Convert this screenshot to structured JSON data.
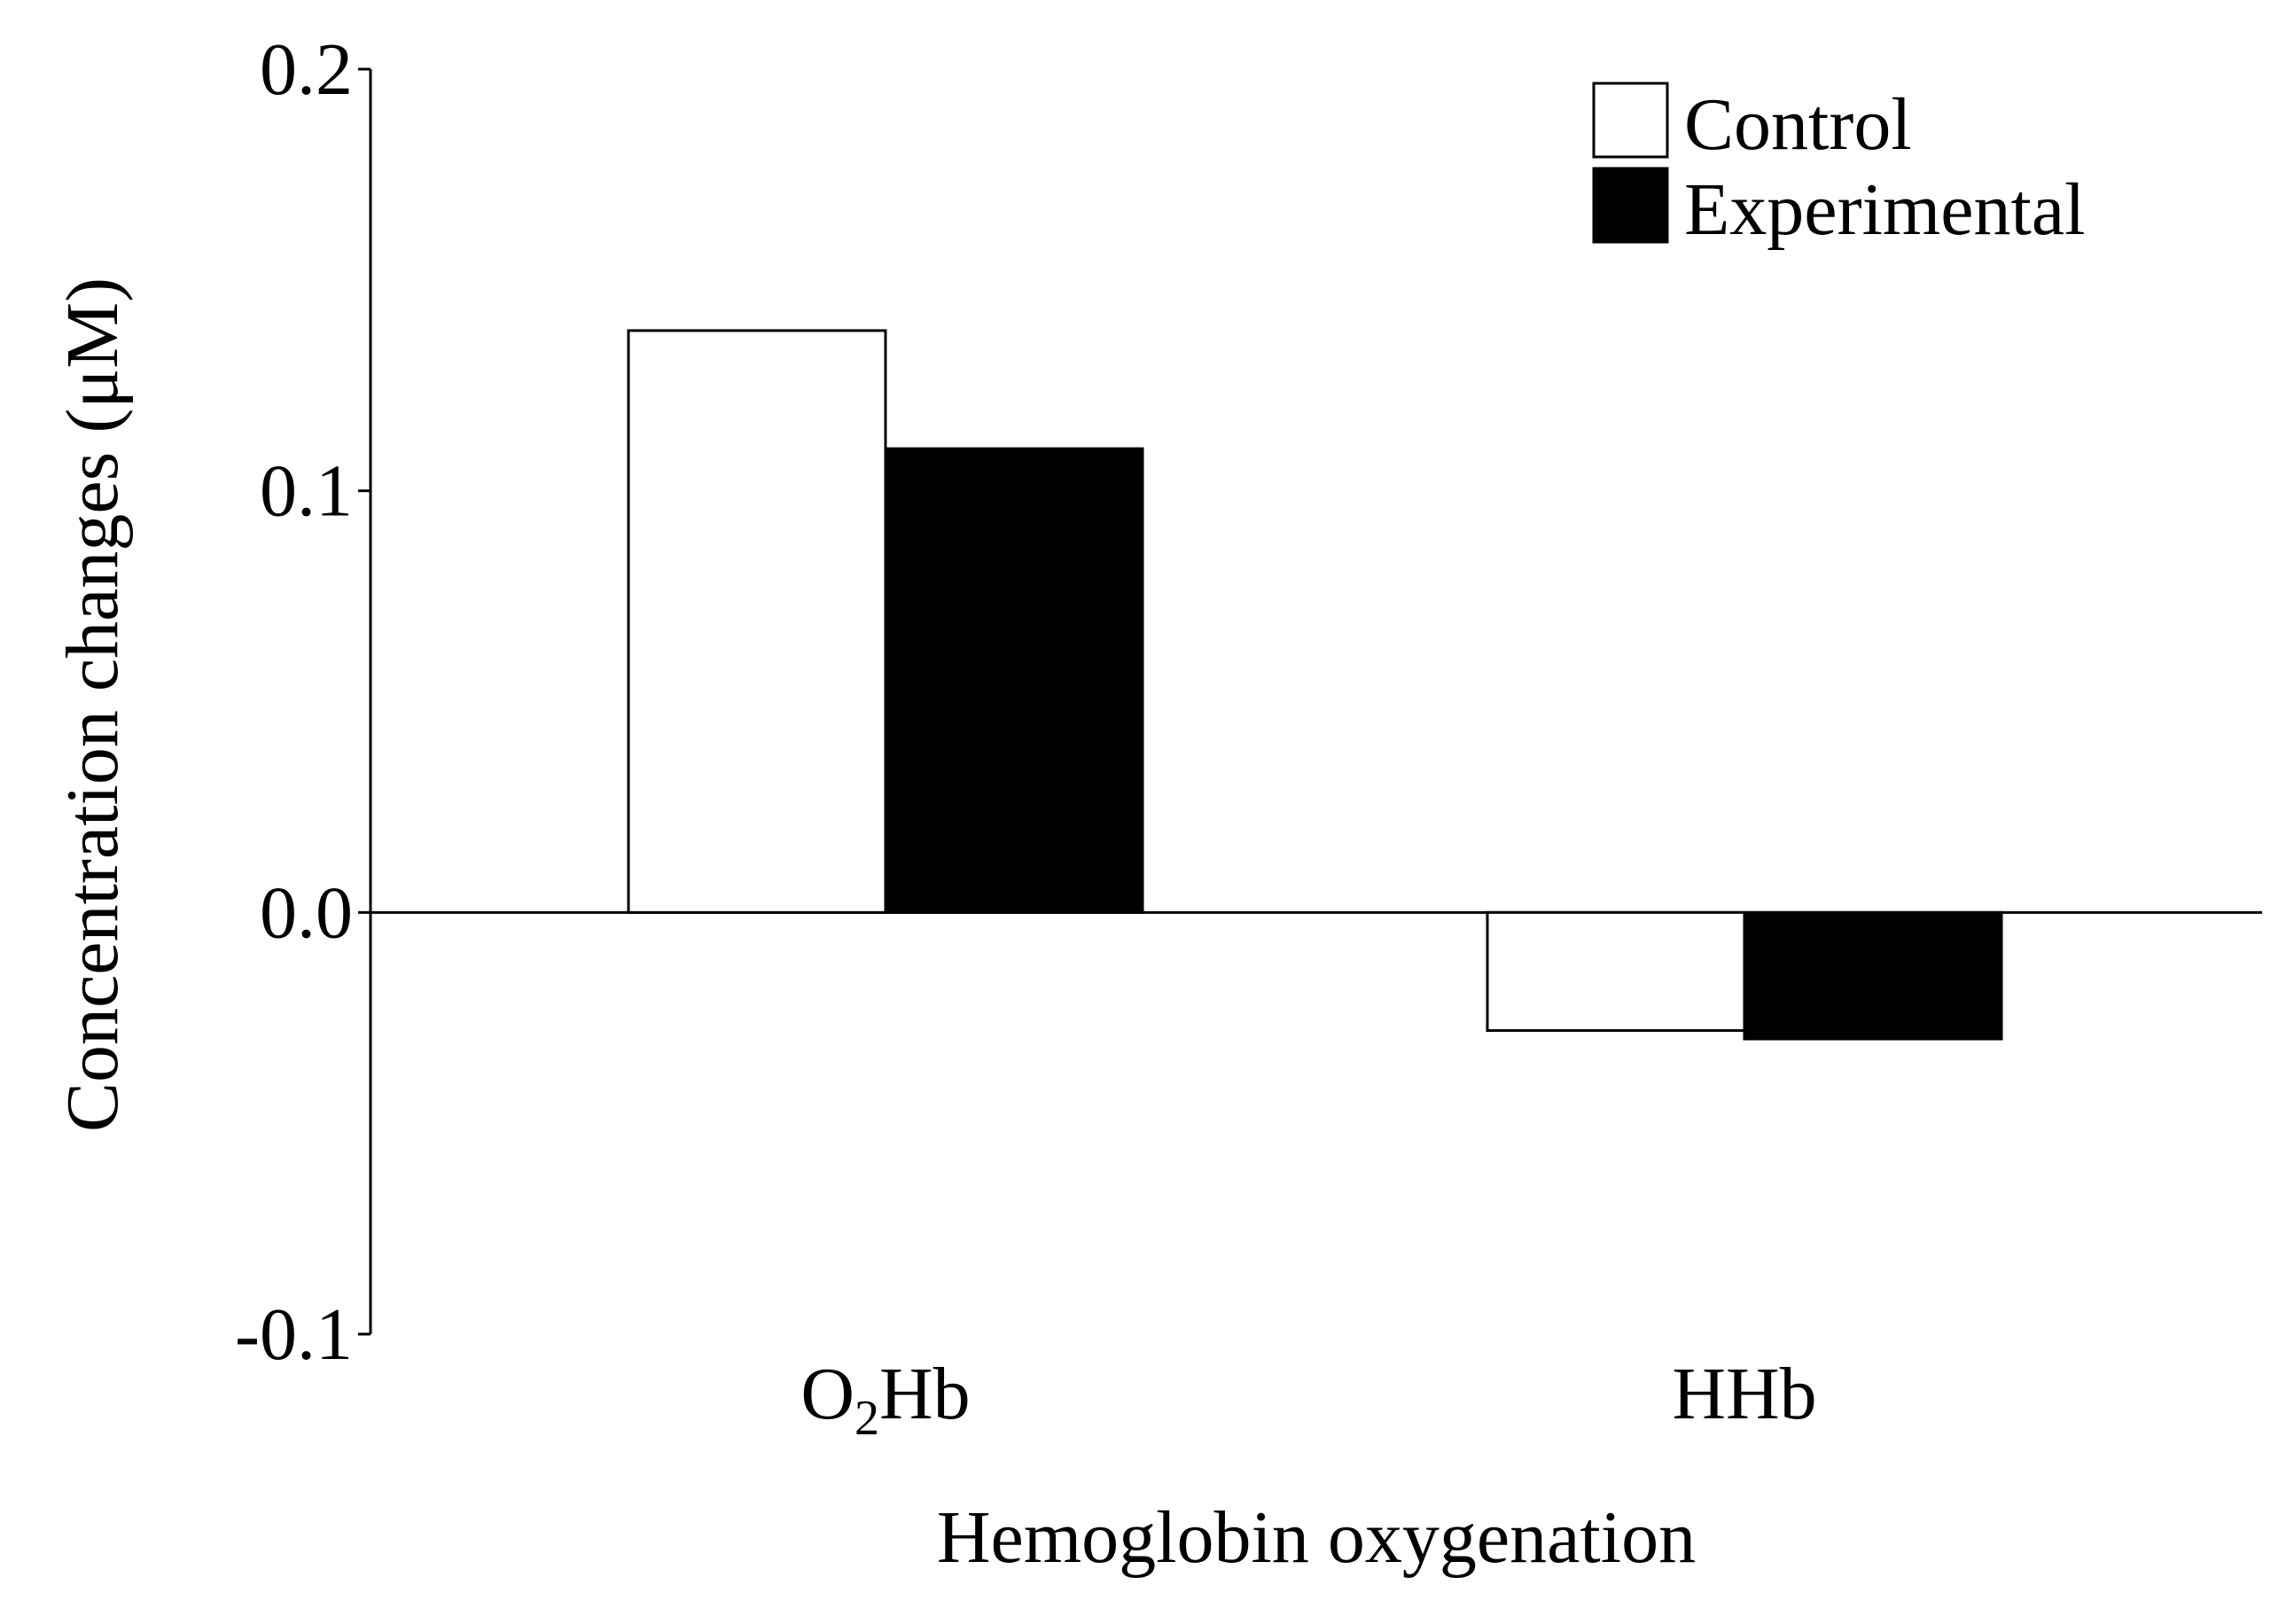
{
  "chart_data": {
    "type": "bar",
    "categories": [
      "O₂Hb",
      "HHb"
    ],
    "category_parts": [
      {
        "base": "O",
        "sub": "2",
        "rest": "Hb"
      },
      {
        "base": "HHb",
        "sub": "",
        "rest": ""
      }
    ],
    "series": [
      {
        "name": "Control",
        "values": [
          0.138,
          -0.028
        ],
        "color": "#ffffff"
      },
      {
        "name": "Experimental",
        "values": [
          0.11,
          -0.03
        ],
        "color": "#000000"
      }
    ],
    "xlabel": "Hemoglobin oxygenation",
    "ylabel": "Concentration changes (μM)",
    "ylim": [
      -0.1,
      0.2
    ],
    "yticks": [
      -0.1,
      0.0,
      0.1,
      0.2
    ],
    "ytick_labels": [
      "-0.1",
      "0.0",
      "0.1",
      "0.2"
    ],
    "grid": false,
    "legend_position": "top-right"
  }
}
